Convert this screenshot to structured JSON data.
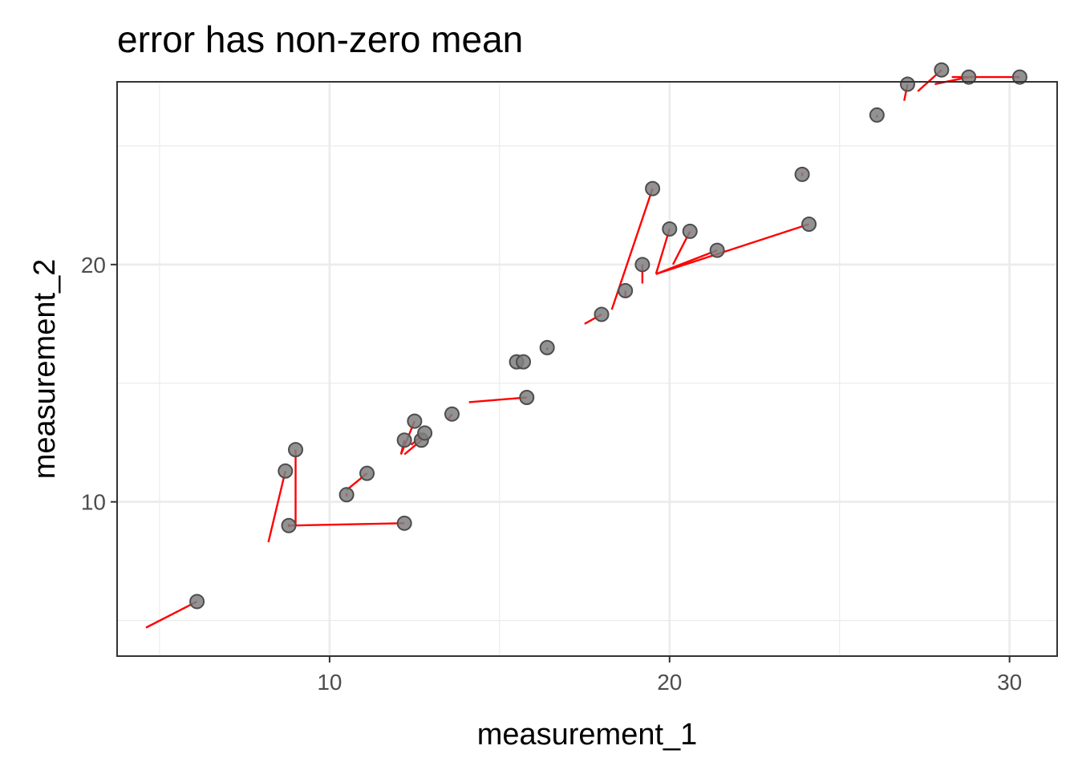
{
  "chart_data": {
    "type": "scatter",
    "title": "error has non-zero mean",
    "xlabel": "measurement_1",
    "ylabel": "measurement_2",
    "xlim": [
      3.75,
      31.4
    ],
    "ylim": [
      3.5,
      27.7
    ],
    "x_ticks": [
      10,
      20,
      30
    ],
    "x_tick_labels": [
      "10",
      "20",
      "30"
    ],
    "y_ticks": [
      10,
      20
    ],
    "y_tick_labels": [
      "10",
      "20"
    ],
    "x_minor": [
      5,
      15,
      25
    ],
    "y_minor": [
      5,
      15,
      25
    ],
    "grid": true,
    "point_color": "#7f7f7f",
    "point_edge": "#4d4d4d",
    "segment_color": "#ff0000",
    "points": [
      {
        "x": 6.1,
        "y": 5.8,
        "xend": 4.6,
        "yend": 4.7
      },
      {
        "x": 8.7,
        "y": 11.3,
        "xend": 8.2,
        "yend": 8.3
      },
      {
        "x": 9.0,
        "y": 12.2,
        "xend": 9.0,
        "yend": 9.0
      },
      {
        "x": 8.8,
        "y": 9.0,
        "xend": 8.8,
        "yend": 9.0
      },
      {
        "x": 12.2,
        "y": 9.1,
        "xend": 8.8,
        "yend": 9.0
      },
      {
        "x": 10.5,
        "y": 10.3,
        "xend": 10.5,
        "yend": 10.3
      },
      {
        "x": 11.1,
        "y": 11.2,
        "xend": 10.5,
        "yend": 10.5
      },
      {
        "x": 12.2,
        "y": 12.6,
        "xend": 12.1,
        "yend": 12.0
      },
      {
        "x": 12.5,
        "y": 13.4,
        "xend": 12.1,
        "yend": 12.0
      },
      {
        "x": 12.7,
        "y": 12.6,
        "xend": 12.2,
        "yend": 12.0
      },
      {
        "x": 12.8,
        "y": 12.9,
        "xend": 12.4,
        "yend": 12.4
      },
      {
        "x": 13.6,
        "y": 13.7,
        "xend": 13.5,
        "yend": 13.5
      },
      {
        "x": 15.8,
        "y": 14.4,
        "xend": 14.1,
        "yend": 14.2
      },
      {
        "x": 15.5,
        "y": 15.9,
        "xend": 15.6,
        "yend": 15.6
      },
      {
        "x": 15.7,
        "y": 15.9,
        "xend": 15.6,
        "yend": 15.6
      },
      {
        "x": 16.4,
        "y": 16.5,
        "xend": 16.4,
        "yend": 16.4
      },
      {
        "x": 18.0,
        "y": 17.9,
        "xend": 17.5,
        "yend": 17.5
      },
      {
        "x": 18.7,
        "y": 18.9,
        "xend": 18.7,
        "yend": 18.6
      },
      {
        "x": 19.5,
        "y": 23.2,
        "xend": 18.3,
        "yend": 18.1
      },
      {
        "x": 19.2,
        "y": 20.0,
        "xend": 19.2,
        "yend": 19.2
      },
      {
        "x": 20.0,
        "y": 21.5,
        "xend": 19.6,
        "yend": 19.6
      },
      {
        "x": 20.6,
        "y": 21.4,
        "xend": 20.1,
        "yend": 20.0
      },
      {
        "x": 21.4,
        "y": 20.6,
        "xend": 19.6,
        "yend": 19.6
      },
      {
        "x": 23.9,
        "y": 23.8,
        "xend": 23.9,
        "yend": 23.8
      },
      {
        "x": 24.1,
        "y": 21.7,
        "xend": 19.6,
        "yend": 19.6
      },
      {
        "x": 26.1,
        "y": 26.3,
        "xend": 26.1,
        "yend": 26.2
      },
      {
        "x": 27.0,
        "y": 27.6,
        "xend": 26.9,
        "yend": 26.9
      },
      {
        "x": 28.0,
        "y": 28.2,
        "xend": 27.3,
        "yend": 27.3
      },
      {
        "x": 28.8,
        "y": 27.9,
        "xend": 27.8,
        "yend": 27.6
      },
      {
        "x": 30.3,
        "y": 27.9,
        "xend": 28.3,
        "yend": 27.9
      }
    ]
  }
}
